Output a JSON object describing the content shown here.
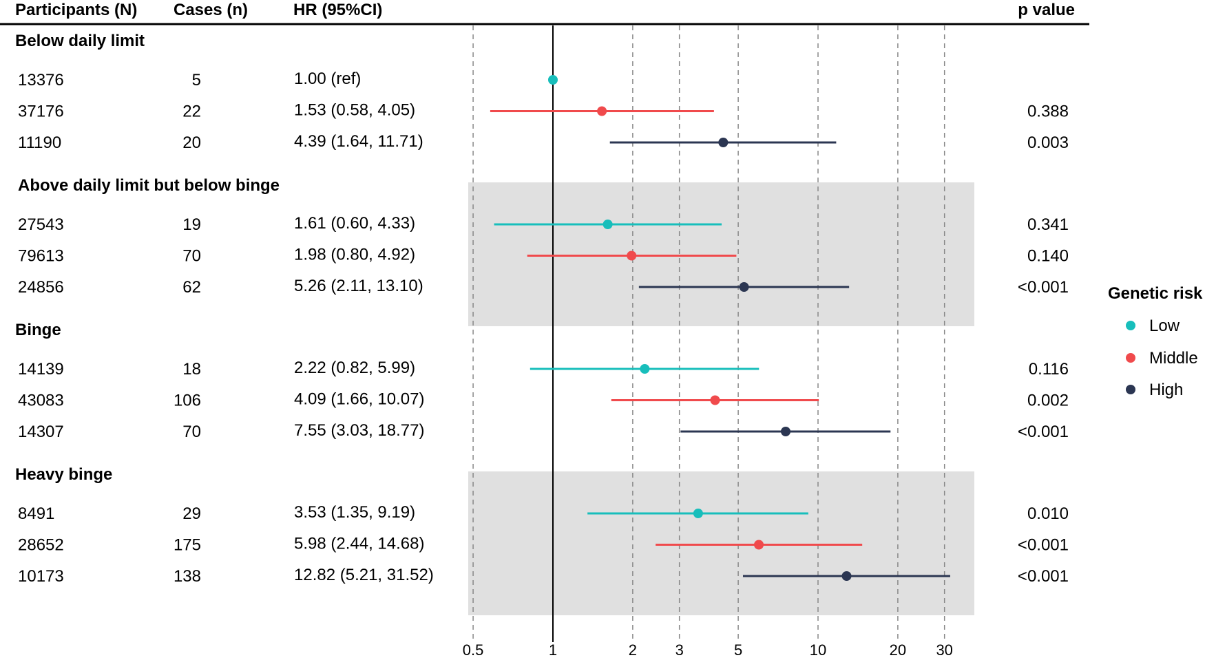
{
  "header": {
    "participants": "Participants (N)",
    "cases": "Cases (n)",
    "hr": "HR (95%CI)",
    "p": "p value"
  },
  "legend": {
    "title": "Genetic risk",
    "items": [
      {
        "label": "Low",
        "color": "#17BEBB"
      },
      {
        "label": "Middle",
        "color": "#F04A4C"
      },
      {
        "label": "High",
        "color": "#2B3652"
      }
    ]
  },
  "chart_data": {
    "type": "forest",
    "x_scale": "log",
    "xlim": [
      0.46,
      40
    ],
    "reference_line": 1,
    "x_ticks": [
      0.5,
      1,
      2,
      3,
      5,
      10,
      20,
      30
    ],
    "x_tick_labels": [
      "0.5",
      "1",
      "2",
      "3",
      "5",
      "10",
      "20",
      "30"
    ],
    "grid": "dashed vertical",
    "legend_position": "right",
    "groups": [
      {
        "label": "Below daily limit",
        "shaded": false,
        "rows": [
          {
            "risk": "Low",
            "participants": "13376",
            "cases": "5",
            "hr_text": "1.00 (ref)",
            "hr": 1.0,
            "lo": null,
            "hi": null,
            "p": ""
          },
          {
            "risk": "Middle",
            "participants": "37176",
            "cases": "22",
            "hr_text": "1.53 (0.58, 4.05)",
            "hr": 1.53,
            "lo": 0.58,
            "hi": 4.05,
            "p": "0.388"
          },
          {
            "risk": "High",
            "participants": "11190",
            "cases": "20",
            "hr_text": "4.39 (1.64, 11.71)",
            "hr": 4.39,
            "lo": 1.64,
            "hi": 11.71,
            "p": "0.003"
          }
        ]
      },
      {
        "label": "Above daily limit but below binge",
        "shaded": true,
        "rows": [
          {
            "risk": "Low",
            "participants": "27543",
            "cases": "19",
            "hr_text": "1.61 (0.60, 4.33)",
            "hr": 1.61,
            "lo": 0.6,
            "hi": 4.33,
            "p": "0.341"
          },
          {
            "risk": "Middle",
            "participants": "79613",
            "cases": "70",
            "hr_text": "1.98 (0.80, 4.92)",
            "hr": 1.98,
            "lo": 0.8,
            "hi": 4.92,
            "p": "0.140"
          },
          {
            "risk": "High",
            "participants": "24856",
            "cases": "62",
            "hr_text": "5.26 (2.11, 13.10)",
            "hr": 5.26,
            "lo": 2.11,
            "hi": 13.1,
            "p": "<0.001"
          }
        ]
      },
      {
        "label": "Binge",
        "shaded": false,
        "rows": [
          {
            "risk": "Low",
            "participants": "14139",
            "cases": "18",
            "hr_text": "2.22 (0.82, 5.99)",
            "hr": 2.22,
            "lo": 0.82,
            "hi": 5.99,
            "p": "0.116"
          },
          {
            "risk": "Middle",
            "participants": "43083",
            "cases": "106",
            "hr_text": "4.09 (1.66, 10.07)",
            "hr": 4.09,
            "lo": 1.66,
            "hi": 10.07,
            "p": "0.002"
          },
          {
            "risk": "High",
            "participants": "14307",
            "cases": "70",
            "hr_text": "7.55 (3.03, 18.77)",
            "hr": 7.55,
            "lo": 3.03,
            "hi": 18.77,
            "p": "<0.001"
          }
        ]
      },
      {
        "label": "Heavy binge",
        "shaded": true,
        "rows": [
          {
            "risk": "Low",
            "participants": "8491",
            "cases": "29",
            "hr_text": "3.53 (1.35, 9.19)",
            "hr": 3.53,
            "lo": 1.35,
            "hi": 9.19,
            "p": "0.010"
          },
          {
            "risk": "Middle",
            "participants": "28652",
            "cases": "175",
            "hr_text": "5.98 (2.44, 14.68)",
            "hr": 5.98,
            "lo": 2.44,
            "hi": 14.68,
            "p": "<0.001"
          },
          {
            "risk": "High",
            "participants": "10173",
            "cases": "138",
            "hr_text": "12.82 (5.21, 31.52)",
            "hr": 12.82,
            "lo": 5.21,
            "hi": 31.52,
            "p": "<0.001"
          }
        ]
      }
    ]
  }
}
